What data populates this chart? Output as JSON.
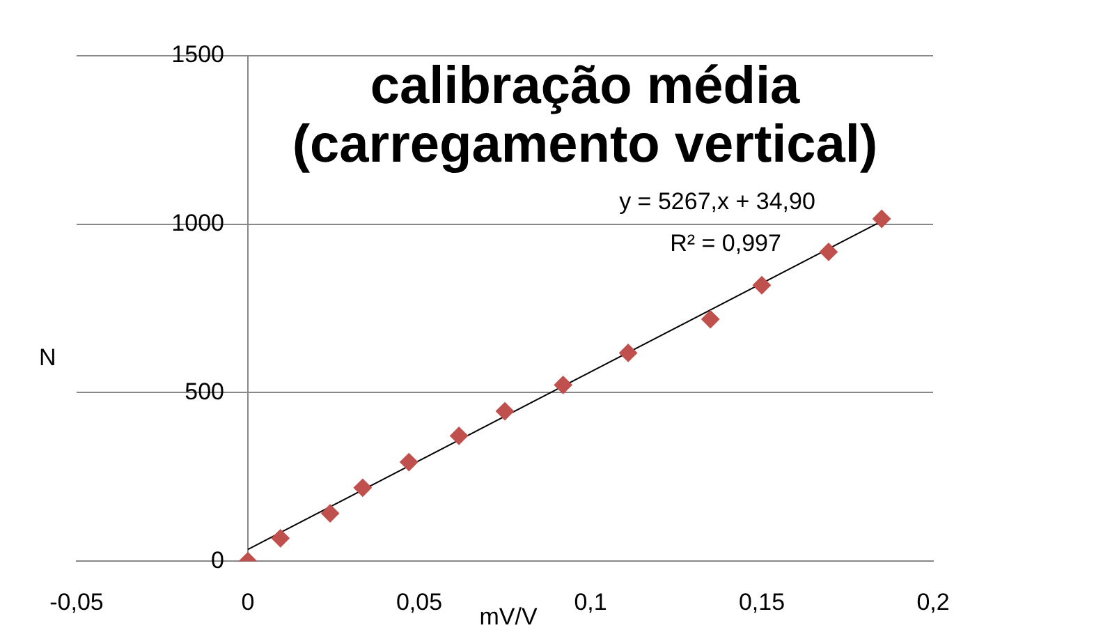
{
  "chart_data": {
    "type": "scatter",
    "title": "calibração média\n(carregamento vertical)",
    "xlabel": "mV/V",
    "ylabel": "N",
    "series": [
      {
        "color": "#c0504d",
        "marker": "diamond",
        "x": [
          0,
          0.0095,
          0.024,
          0.0335,
          0.047,
          0.0616,
          0.075,
          0.092,
          0.111,
          0.135,
          0.15,
          0.1695,
          0.185
        ],
        "values": [
          0,
          68,
          142,
          218,
          294,
          372,
          445,
          523,
          618,
          718,
          819,
          918,
          1016
        ]
      },
      {
        "type": "line",
        "color": "#000000",
        "marker": "none",
        "x": [
          0,
          0.185
        ],
        "values": [
          35,
          1009
        ]
      }
    ],
    "annotations": [
      "y = 5267,x + 34,90",
      "R² = 0,997"
    ],
    "xlim": [
      -0.05,
      0.2
    ],
    "xticks": [
      {
        "value": -0.05,
        "label": "-0,05"
      },
      0,
      {
        "value": 0.05,
        "label": "0,05"
      },
      {
        "value": 0.1,
        "label": "0,1"
      },
      {
        "value": 0.15,
        "label": "0,15"
      },
      {
        "value": 0.2,
        "label": "0,2"
      }
    ],
    "ylim": [
      0,
      1500
    ],
    "yticks": [
      0,
      500,
      1000,
      1500
    ],
    "grid": "y",
    "legend": false
  }
}
